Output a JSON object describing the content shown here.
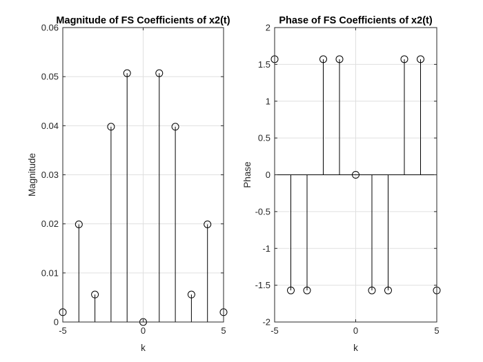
{
  "colors": {
    "background": "#ffffff",
    "axes": "#262626",
    "grid": "#dfdfdf",
    "stem": "#000000"
  },
  "chart_data": [
    {
      "type": "stem",
      "title": "Magnitude of FS Coefficients of x2(t)",
      "xlabel": "k",
      "ylabel": "Magnitude",
      "xlim": [
        -5,
        5
      ],
      "ylim": [
        0,
        0.06
      ],
      "xticks": [
        -5,
        0,
        5
      ],
      "yticks": [
        0,
        0.01,
        0.02,
        0.03,
        0.04,
        0.05,
        0.06
      ],
      "ytick_labels": [
        "0",
        "0.01",
        "0.02",
        "0.03",
        "0.04",
        "0.05",
        "0.06"
      ],
      "grid": true,
      "marker": "circle",
      "x": [
        -5,
        -4,
        -3,
        -2,
        -1,
        0,
        1,
        2,
        3,
        4,
        5
      ],
      "values": [
        0.002,
        0.0199,
        0.0056,
        0.0398,
        0.0507,
        0.0,
        0.0507,
        0.0398,
        0.0056,
        0.0199,
        0.002
      ]
    },
    {
      "type": "stem",
      "title": "Phase of FS Coefficients of x2(t)",
      "xlabel": "k",
      "ylabel": "Phase",
      "xlim": [
        -5,
        5
      ],
      "ylim": [
        -2,
        2
      ],
      "xticks": [
        -5,
        0,
        5
      ],
      "yticks": [
        -2,
        -1.5,
        -1,
        -0.5,
        0,
        0.5,
        1,
        1.5,
        2
      ],
      "ytick_labels": [
        "-2",
        "-1.5",
        "-1",
        "-0.5",
        "0",
        "0.5",
        "1",
        "1.5",
        "2"
      ],
      "grid": true,
      "marker": "circle",
      "x": [
        -5,
        -4,
        -3,
        -2,
        -1,
        0,
        1,
        2,
        3,
        4,
        5
      ],
      "values": [
        1.5708,
        -1.5708,
        -1.5708,
        1.5708,
        1.5708,
        0,
        -1.5708,
        -1.5708,
        1.5708,
        1.5708,
        -1.5708
      ]
    }
  ]
}
